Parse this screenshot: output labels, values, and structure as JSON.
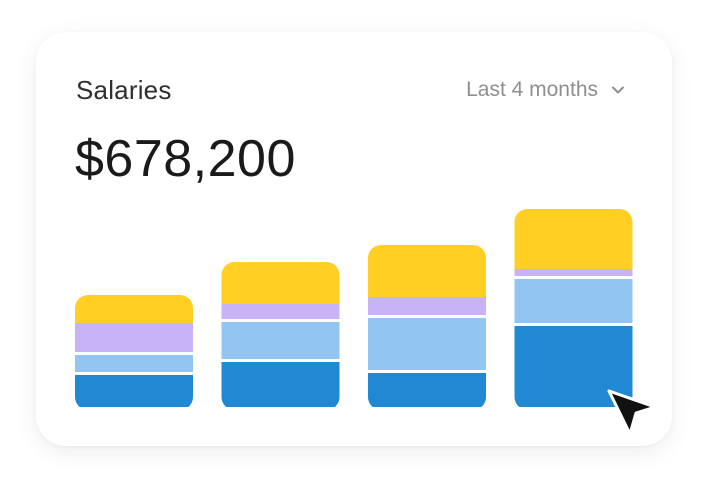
{
  "card": {
    "title": "Salaries",
    "period_label": "Last 4 months",
    "total": "$678,200"
  },
  "icons": {
    "period_dropdown": "chevron-down-icon",
    "pointer": "cursor-arrow-icon"
  },
  "colors": {
    "segment_1": "#2188d4",
    "segment_2": "#93c5f3",
    "segment_3": "#c9b3f8",
    "segment_4": "#ffd023"
  },
  "chart_data": {
    "type": "bar",
    "stacked": true,
    "categories": [
      "",
      "",
      "",
      ""
    ],
    "series": [
      {
        "values": [
          35,
          48,
          37,
          84
        ],
        "color": "#2188d4"
      },
      {
        "values": [
          20,
          40,
          55,
          47
        ],
        "color": "#93c5f3"
      },
      {
        "values": [
          32,
          18,
          21,
          10
        ],
        "color": "#c9b3f8"
      },
      {
        "values": [
          28,
          42,
          52,
          60
        ],
        "color": "#ffd023"
      }
    ],
    "ylim": [
      0,
      210
    ],
    "grid": false,
    "legend": "none"
  }
}
